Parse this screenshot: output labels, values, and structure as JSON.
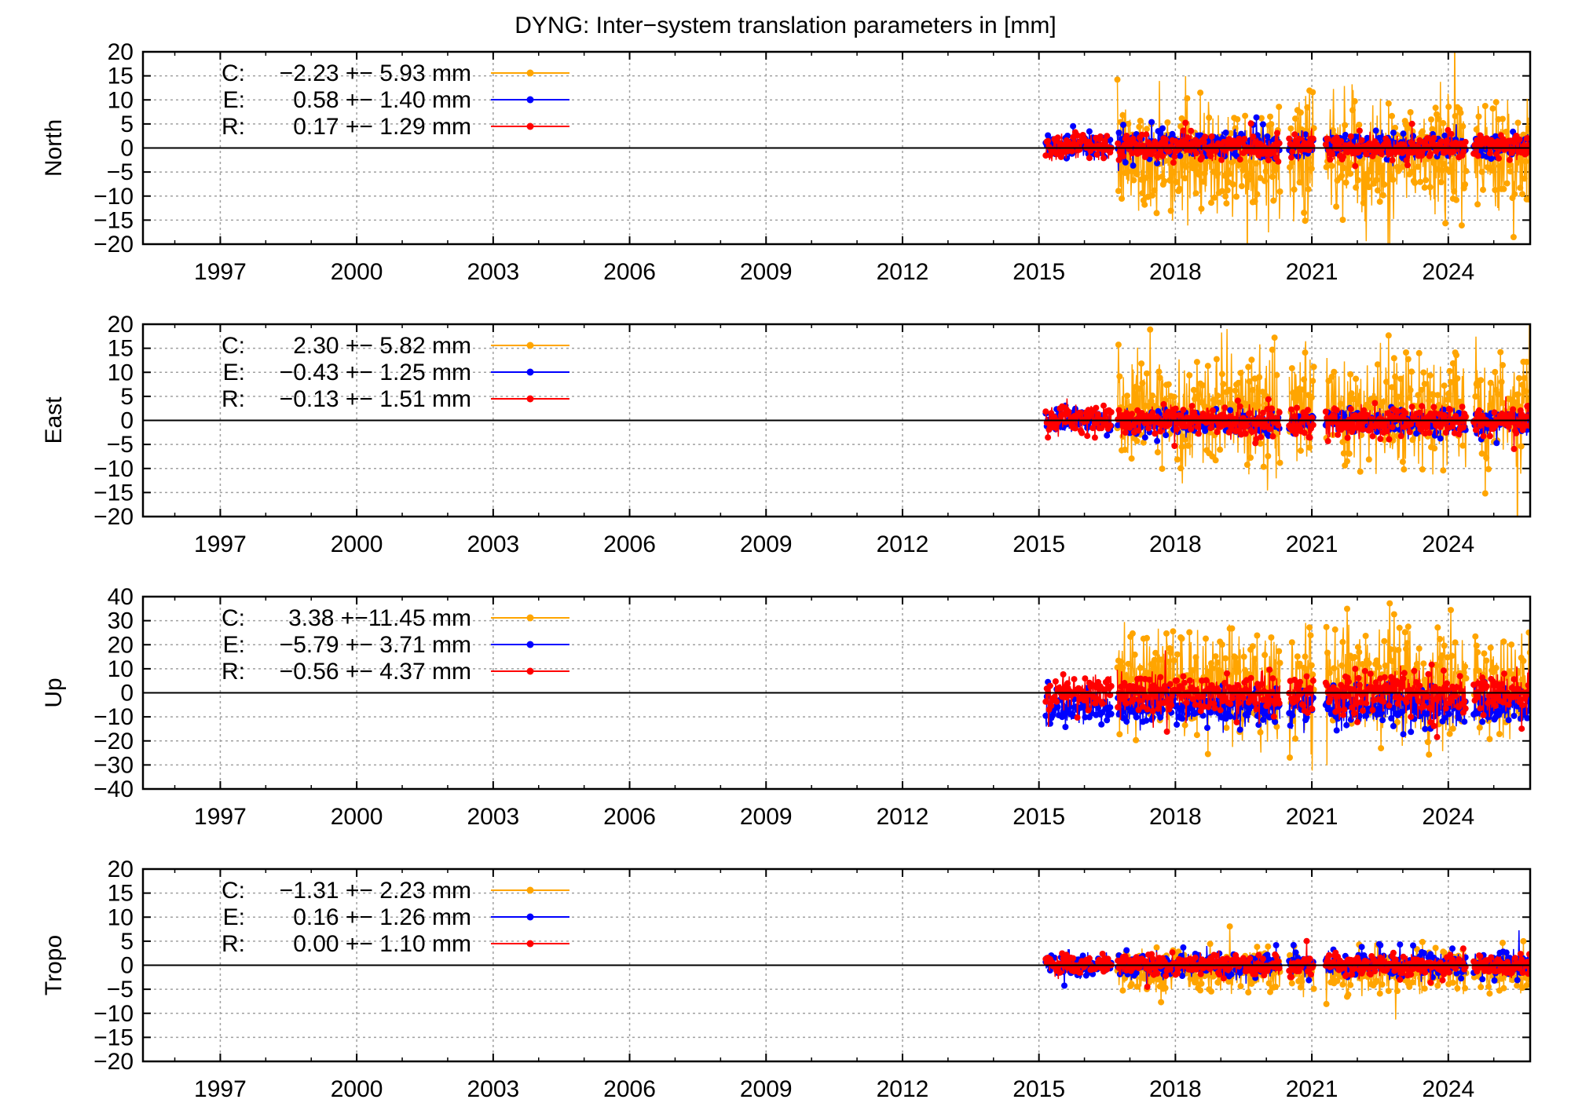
{
  "title": "DYNG: Inter−system translation parameters in [mm]",
  "colors": {
    "C": "#ffa500",
    "E": "#0000ff",
    "R": "#ff0000",
    "zero_line": "#000000",
    "grid": "#a0a0a0"
  },
  "chart_data": [
    {
      "type": "line",
      "ylabel": "North",
      "xlim": [
        1995.3,
        2025.8
      ],
      "ylim": [
        -20,
        20
      ],
      "yticks": [
        "20",
        "15",
        "10",
        "5",
        "0",
        "−5",
        "−10",
        "−15",
        "−20"
      ],
      "xticks": [
        "1997",
        "2000",
        "2003",
        "2006",
        "2009",
        "2012",
        "2015",
        "2018",
        "2021",
        "2024"
      ],
      "grid": true,
      "legend_position": "top-left",
      "series": [
        {
          "name": "C",
          "label": "C:",
          "value_text": "−2.23 +− 5.93 mm",
          "mean": -2.23,
          "std": 5.93
        },
        {
          "name": "E",
          "label": "E:",
          "value_text": "0.58 +− 1.40 mm",
          "mean": 0.58,
          "std": 1.4
        },
        {
          "name": "R",
          "label": "R:",
          "value_text": "0.17 +− 1.29 mm",
          "mean": 0.17,
          "std": 1.29
        }
      ]
    },
    {
      "type": "line",
      "ylabel": "East",
      "xlim": [
        1995.3,
        2025.8
      ],
      "ylim": [
        -20,
        20
      ],
      "yticks": [
        "20",
        "15",
        "10",
        "5",
        "0",
        "−5",
        "−10",
        "−15",
        "−20"
      ],
      "xticks": [
        "1997",
        "2000",
        "2003",
        "2006",
        "2009",
        "2012",
        "2015",
        "2018",
        "2021",
        "2024"
      ],
      "grid": true,
      "legend_position": "top-left",
      "series": [
        {
          "name": "C",
          "label": "C:",
          "value_text": "2.30 +− 5.82 mm",
          "mean": 2.3,
          "std": 5.82
        },
        {
          "name": "E",
          "label": "E:",
          "value_text": "−0.43 +− 1.25 mm",
          "mean": -0.43,
          "std": 1.25
        },
        {
          "name": "R",
          "label": "R:",
          "value_text": "−0.13 +− 1.51 mm",
          "mean": -0.13,
          "std": 1.51
        }
      ]
    },
    {
      "type": "line",
      "ylabel": "Up",
      "xlim": [
        1995.3,
        2025.8
      ],
      "ylim": [
        -40,
        40
      ],
      "yticks": [
        "40",
        "30",
        "20",
        "10",
        "0",
        "−10",
        "−20",
        "−30",
        "−40"
      ],
      "xticks": [
        "1997",
        "2000",
        "2003",
        "2006",
        "2009",
        "2012",
        "2015",
        "2018",
        "2021",
        "2024"
      ],
      "grid": true,
      "legend_position": "top-left",
      "series": [
        {
          "name": "C",
          "label": "C:",
          "value_text": "3.38 +−11.45 mm",
          "mean": 3.38,
          "std": 11.45
        },
        {
          "name": "E",
          "label": "E:",
          "value_text": "−5.79 +− 3.71 mm",
          "mean": -5.79,
          "std": 3.71
        },
        {
          "name": "R",
          "label": "R:",
          "value_text": "−0.56 +− 4.37 mm",
          "mean": -0.56,
          "std": 4.37
        }
      ]
    },
    {
      "type": "line",
      "ylabel": "Tropo",
      "xlim": [
        1995.3,
        2025.8
      ],
      "ylim": [
        -20,
        20
      ],
      "yticks": [
        "20",
        "15",
        "10",
        "5",
        "0",
        "−5",
        "−10",
        "−15",
        "−20"
      ],
      "xticks": [
        "1997",
        "2000",
        "2003",
        "2006",
        "2009",
        "2012",
        "2015",
        "2018",
        "2021",
        "2024"
      ],
      "grid": true,
      "legend_position": "top-left",
      "series": [
        {
          "name": "C",
          "label": "C:",
          "value_text": "−1.31 +− 2.23 mm",
          "mean": -1.31,
          "std": 2.23
        },
        {
          "name": "E",
          "label": "E:",
          "value_text": "0.16 +− 1.26 mm",
          "mean": 0.16,
          "std": 1.26
        },
        {
          "name": "R",
          "label": "R:",
          "value_text": "0.00 +− 1.10 mm",
          "mean": 0.0,
          "std": 1.1
        }
      ]
    }
  ],
  "data_span": {
    "start": 2015.15,
    "end": 2025.8,
    "C_start": 2016.7,
    "gaps": [
      [
        2016.6,
        2016.72
      ],
      [
        2020.3,
        2020.5
      ],
      [
        2021.05,
        2021.3
      ],
      [
        2024.4,
        2024.55
      ]
    ]
  }
}
